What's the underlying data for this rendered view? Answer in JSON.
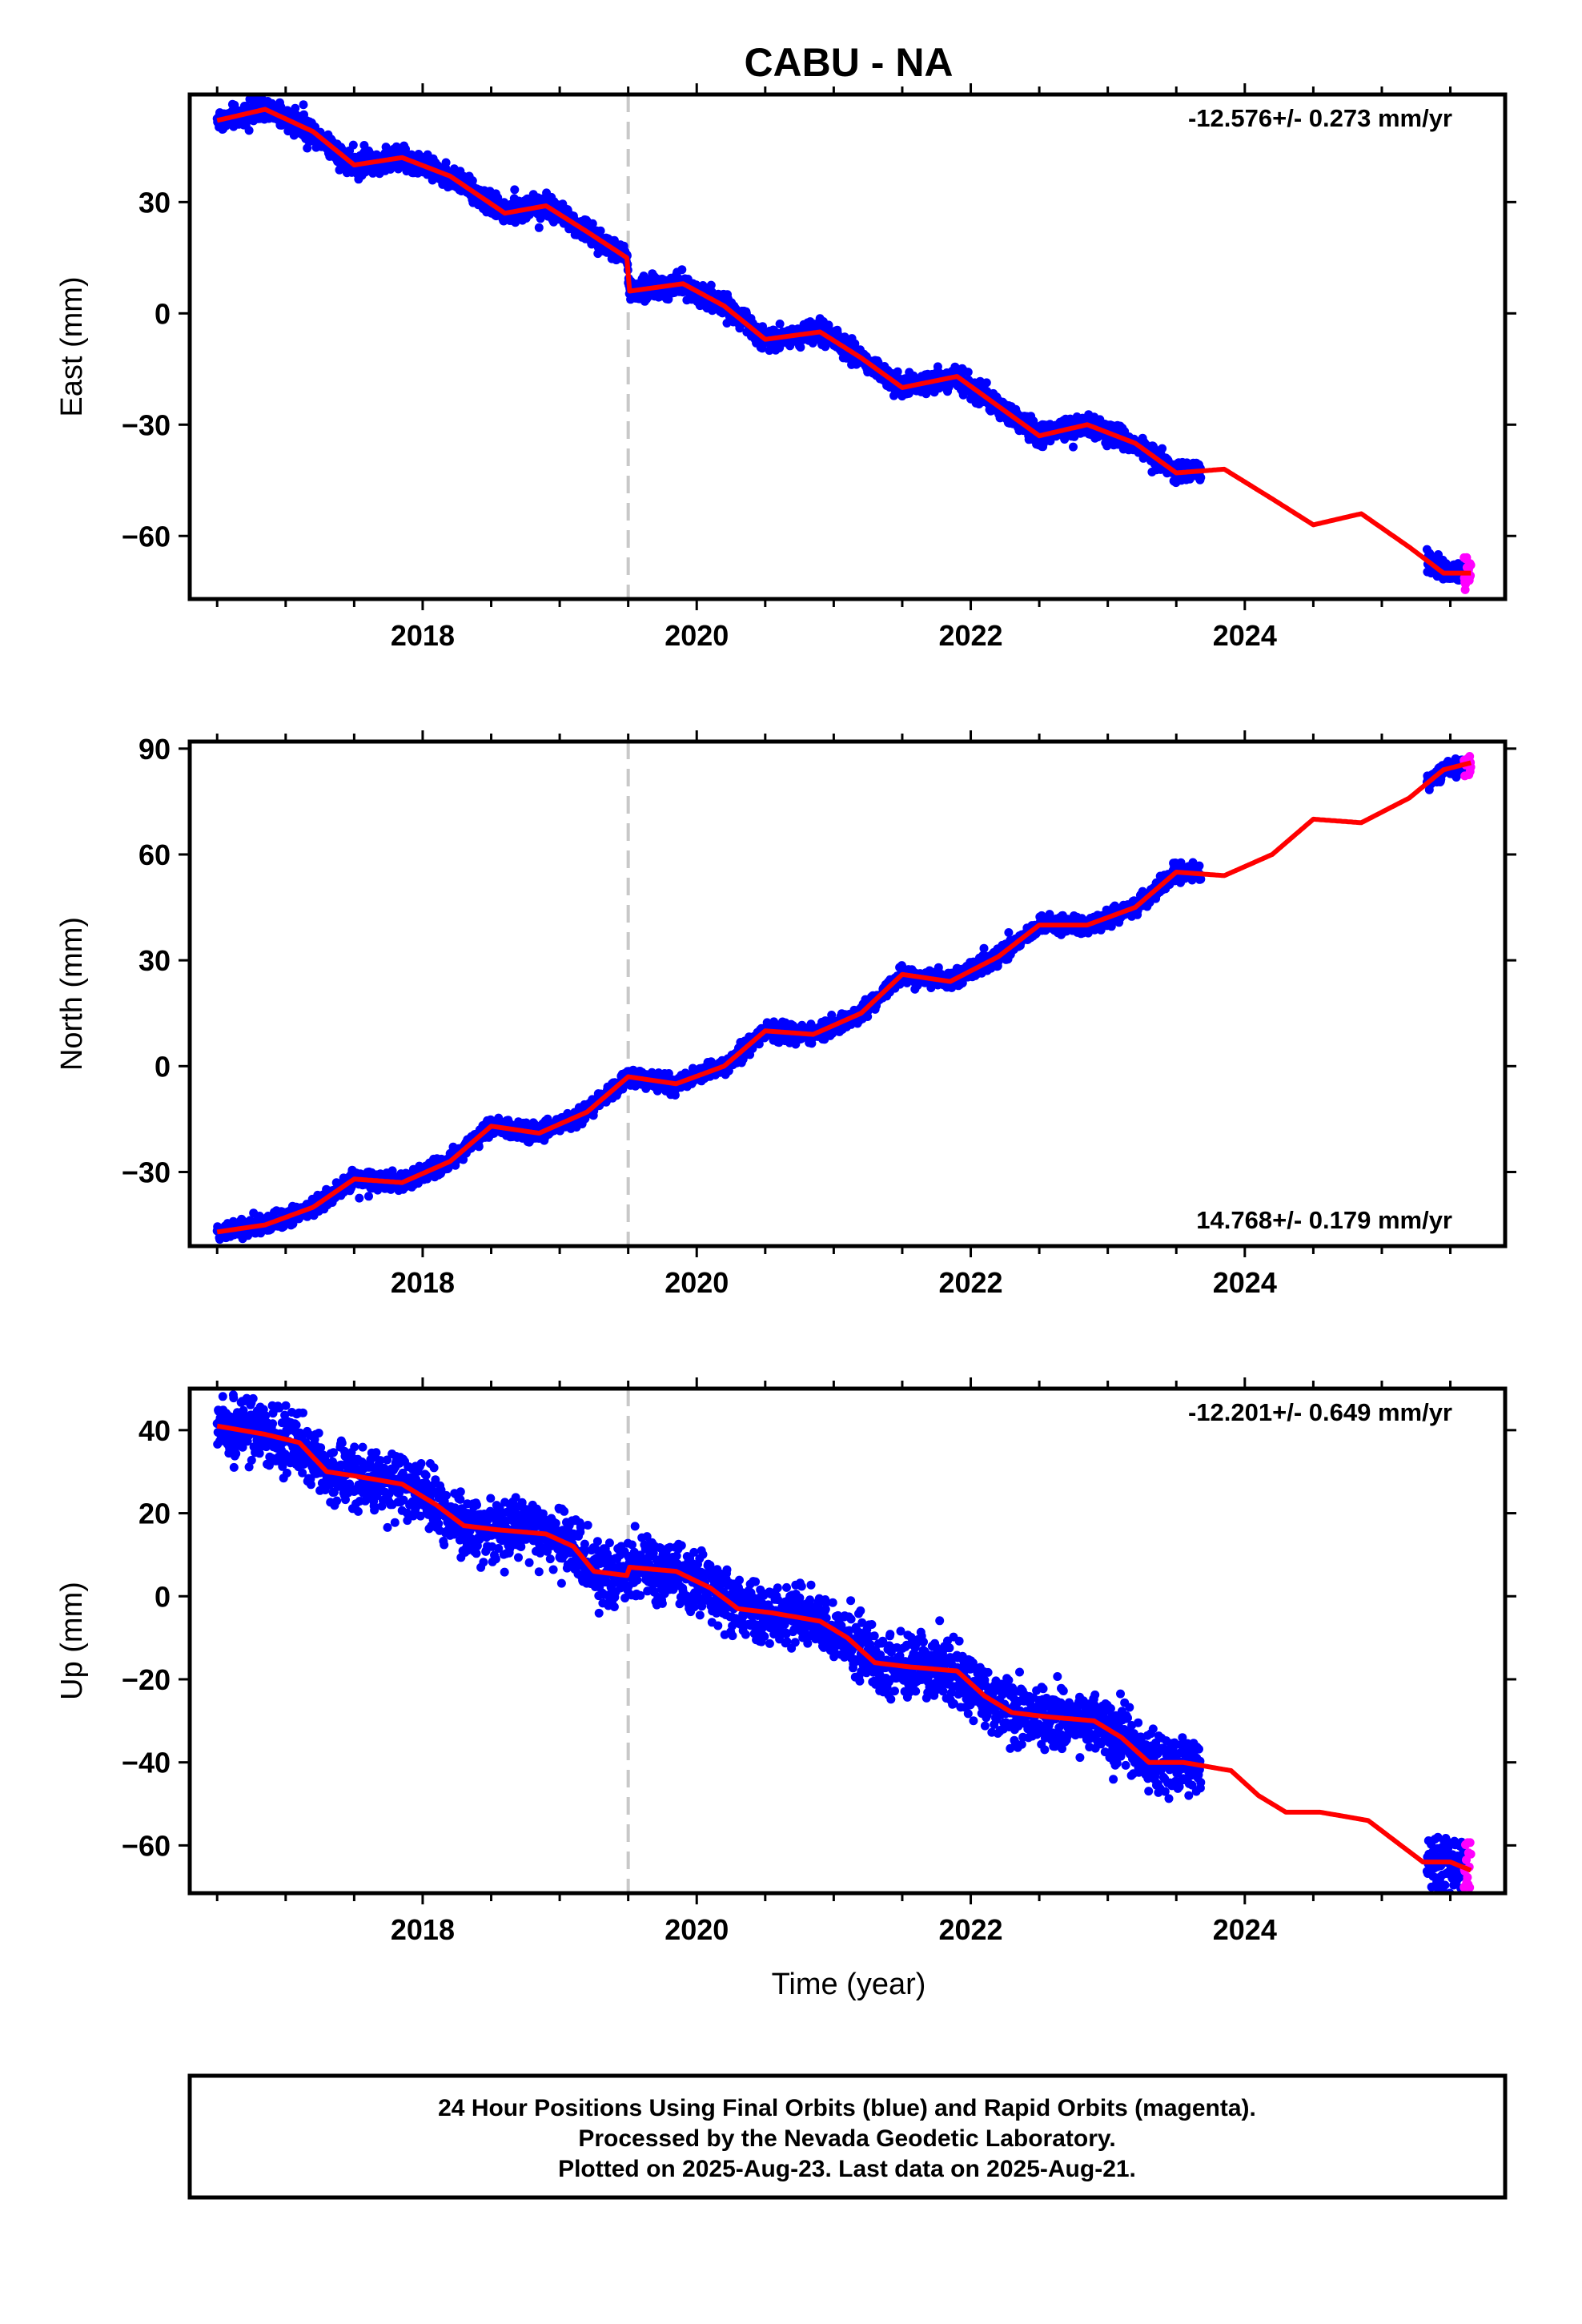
{
  "chart_data": {
    "type": "scatter",
    "title": "CABU - NA",
    "xlabel": "Time (year)",
    "xlim": [
      2016.3,
      2025.9
    ],
    "xticks": [
      "2018",
      "2020",
      "2022",
      "2024"
    ],
    "event_line_x": 2019.5,
    "series_colors": {
      "final": "#0000ff",
      "rapid": "#ff00ff",
      "model": "#ff0000",
      "event": "#c8c8c8"
    },
    "grid": false,
    "panels": [
      {
        "id": "east",
        "ylabel": "East (mm)",
        "ylim": [
          -77,
          59
        ],
        "yticks": [
          "30",
          "0",
          "-30",
          "-60"
        ],
        "rate_label": "-12.576+/- 0.273 mm/yr",
        "rate_position": "top-right",
        "noise_mm": 1.5,
        "model": [
          [
            2016.5,
            52
          ],
          [
            2016.85,
            55
          ],
          [
            2017.2,
            49
          ],
          [
            2017.5,
            40
          ],
          [
            2017.85,
            42
          ],
          [
            2018.2,
            37
          ],
          [
            2018.6,
            27
          ],
          [
            2018.9,
            29
          ],
          [
            2019.2,
            22
          ],
          [
            2019.49,
            15
          ],
          [
            2019.51,
            6
          ],
          [
            2019.9,
            8
          ],
          [
            2020.2,
            2
          ],
          [
            2020.5,
            -7
          ],
          [
            2020.9,
            -5
          ],
          [
            2021.2,
            -12
          ],
          [
            2021.5,
            -20
          ],
          [
            2021.9,
            -17
          ],
          [
            2022.2,
            -25
          ],
          [
            2022.5,
            -33
          ],
          [
            2022.85,
            -30
          ],
          [
            2023.2,
            -35
          ],
          [
            2023.5,
            -43
          ],
          [
            2023.85,
            -42
          ],
          [
            2024.2,
            -50
          ],
          [
            2024.5,
            -57
          ],
          [
            2024.85,
            -54
          ],
          [
            2025.2,
            -63
          ],
          [
            2025.45,
            -70
          ],
          [
            2025.65,
            -70
          ]
        ],
        "final_segments": [
          [
            2016.5,
            2023.68
          ],
          [
            2025.33,
            2025.6
          ]
        ],
        "rapid_segment": [
          2025.6,
          2025.65
        ],
        "rapid_offset": 1
      },
      {
        "id": "north",
        "ylabel": "North (mm)",
        "ylim": [
          -51,
          92
        ],
        "yticks": [
          "90",
          "60",
          "30",
          "0",
          "-30"
        ],
        "rate_label": "14.768+/- 0.179 mm/yr",
        "rate_position": "bottom-right",
        "noise_mm": 1.2,
        "model": [
          [
            2016.5,
            -47
          ],
          [
            2016.85,
            -45
          ],
          [
            2017.2,
            -40
          ],
          [
            2017.5,
            -32
          ],
          [
            2017.85,
            -33
          ],
          [
            2018.2,
            -27
          ],
          [
            2018.5,
            -17
          ],
          [
            2018.85,
            -19
          ],
          [
            2019.2,
            -13
          ],
          [
            2019.5,
            -3
          ],
          [
            2019.85,
            -5
          ],
          [
            2020.2,
            0
          ],
          [
            2020.5,
            10
          ],
          [
            2020.85,
            9
          ],
          [
            2021.2,
            15
          ],
          [
            2021.5,
            26
          ],
          [
            2021.85,
            24
          ],
          [
            2022.2,
            31
          ],
          [
            2022.5,
            40
          ],
          [
            2022.85,
            40
          ],
          [
            2023.2,
            45
          ],
          [
            2023.5,
            55
          ],
          [
            2023.85,
            54
          ],
          [
            2024.2,
            60
          ],
          [
            2024.5,
            70
          ],
          [
            2024.85,
            69
          ],
          [
            2025.2,
            76
          ],
          [
            2025.45,
            84
          ],
          [
            2025.65,
            86
          ]
        ],
        "final_segments": [
          [
            2016.5,
            2023.68
          ],
          [
            2025.33,
            2025.6
          ]
        ],
        "rapid_segment": [
          2025.6,
          2025.65
        ],
        "rapid_offset": 0
      },
      {
        "id": "up",
        "ylabel": "Up (mm)",
        "ylim": [
          -71.5,
          50
        ],
        "yticks": [
          "40",
          "20",
          "0",
          "-20",
          "-40",
          "-60"
        ],
        "rate_label": "-12.201+/- 0.649 mm/yr",
        "rate_position": "top-right",
        "noise_mm": 3.6,
        "model": [
          [
            2016.5,
            41
          ],
          [
            2016.85,
            39
          ],
          [
            2017.1,
            37
          ],
          [
            2017.3,
            30
          ],
          [
            2017.5,
            29
          ],
          [
            2017.85,
            27
          ],
          [
            2018.1,
            22
          ],
          [
            2018.3,
            17
          ],
          [
            2018.55,
            16
          ],
          [
            2018.9,
            15
          ],
          [
            2019.1,
            12
          ],
          [
            2019.25,
            6
          ],
          [
            2019.49,
            5
          ],
          [
            2019.51,
            7
          ],
          [
            2019.85,
            6
          ],
          [
            2020.1,
            2
          ],
          [
            2020.3,
            -3
          ],
          [
            2020.55,
            -4
          ],
          [
            2020.9,
            -6
          ],
          [
            2021.1,
            -10
          ],
          [
            2021.3,
            -16
          ],
          [
            2021.55,
            -17
          ],
          [
            2021.9,
            -18
          ],
          [
            2022.1,
            -24
          ],
          [
            2022.3,
            -28
          ],
          [
            2022.55,
            -29
          ],
          [
            2022.9,
            -30
          ],
          [
            2023.1,
            -34
          ],
          [
            2023.3,
            -40
          ],
          [
            2023.55,
            -40
          ],
          [
            2023.9,
            -42
          ],
          [
            2024.1,
            -48
          ],
          [
            2024.3,
            -52
          ],
          [
            2024.55,
            -52
          ],
          [
            2024.9,
            -54
          ],
          [
            2025.1,
            -59
          ],
          [
            2025.3,
            -64
          ],
          [
            2025.5,
            -64
          ],
          [
            2025.65,
            -66
          ]
        ],
        "final_segments": [
          [
            2016.5,
            2023.68
          ],
          [
            2025.33,
            2025.6
          ]
        ],
        "rapid_segment": [
          2025.6,
          2025.65
        ],
        "rapid_offset": 0
      }
    ]
  },
  "footer": {
    "line1": "24 Hour Positions Using Final Orbits (blue) and Rapid Orbits (magenta).",
    "line2": "Processed by the Nevada Geodetic Laboratory.",
    "line3": "Plotted on 2025-Aug-23. Last data on 2025-Aug-21."
  }
}
